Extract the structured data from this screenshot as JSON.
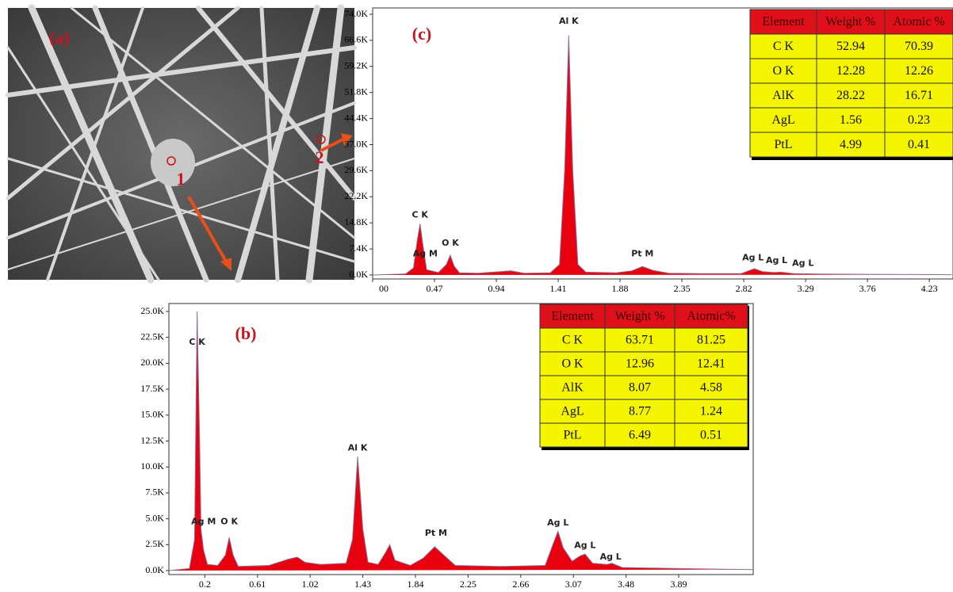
{
  "image_panel": {
    "label": "(a)",
    "markers": [
      "1",
      "2"
    ]
  },
  "chart_data": [
    {
      "type": "area",
      "title": "(c)",
      "color": "#e8000e",
      "x": [
        0.0,
        0.25,
        0.31,
        0.34,
        0.36,
        0.38,
        0.41,
        0.5,
        0.56,
        0.59,
        0.62,
        0.66,
        0.8,
        0.95,
        1.05,
        1.15,
        1.35,
        1.42,
        1.46,
        1.49,
        1.52,
        1.56,
        1.62,
        1.75,
        1.85,
        1.97,
        2.05,
        2.13,
        2.25,
        2.5,
        2.8,
        2.9,
        2.96,
        3.05,
        3.1,
        3.2,
        3.4,
        3.8,
        4.4
      ],
      "values": [
        0,
        300,
        2000,
        10000,
        14500,
        9000,
        1500,
        700,
        3000,
        5600,
        2500,
        600,
        500,
        900,
        1200,
        500,
        600,
        3000,
        30000,
        68000,
        30000,
        3000,
        800,
        700,
        600,
        1200,
        2400,
        1300,
        500,
        400,
        400,
        1800,
        1000,
        700,
        800,
        400,
        300,
        200,
        100
      ],
      "xlim": [
        0,
        4.41
      ],
      "ylim": [
        0,
        74000
      ],
      "xticks": [
        {
          "value": 0,
          "label": "00"
        },
        0.47,
        0.94,
        1.41,
        1.88,
        2.35,
        2.82,
        3.29,
        3.76,
        4.23
      ],
      "yticks": [
        {
          "value": 0,
          "label": "0.0K"
        },
        {
          "value": 7400,
          "label": "7.4K"
        },
        {
          "value": 14800,
          "label": "14.8K"
        },
        {
          "value": 22200,
          "label": "22.2K"
        },
        {
          "value": 29600,
          "label": "29.6K"
        },
        {
          "value": 37000,
          "label": "37.0K"
        },
        {
          "value": 44400,
          "label": "44.4K"
        },
        {
          "value": 51800,
          "label": "51.8K"
        },
        {
          "value": 59200,
          "label": "59.2K"
        },
        {
          "value": 66600,
          "label": "66.6K"
        },
        {
          "value": 74000,
          "label": "74.0K"
        }
      ],
      "annotations": [
        {
          "text": "C K",
          "x": 0.36,
          "y": 17000
        },
        {
          "text": "Ag M",
          "x": 0.4,
          "y": 6000
        },
        {
          "text": "O K",
          "x": 0.59,
          "y": 9000
        },
        {
          "text": "Al K",
          "x": 1.49,
          "y": 72000
        },
        {
          "text": "Pt M",
          "x": 2.05,
          "y": 6000
        },
        {
          "text": "Ag L",
          "x": 2.89,
          "y": 4800
        },
        {
          "text": "Ag L",
          "x": 3.07,
          "y": 4000
        },
        {
          "text": "Ag L",
          "x": 3.27,
          "y": 3300
        }
      ],
      "table": {
        "columns": [
          "Element",
          "Weight %",
          "Atomic %"
        ],
        "rows": [
          [
            "C K",
            52.94,
            70.39
          ],
          [
            "O K",
            12.28,
            12.26
          ],
          [
            "AlK",
            28.22,
            16.71
          ],
          [
            "AgL",
            1.56,
            0.23
          ],
          [
            "PtL",
            4.99,
            0.41
          ]
        ]
      }
    },
    {
      "type": "area",
      "title": "(b)",
      "color": "#e8000e",
      "x": [
        -0.08,
        0.08,
        0.12,
        0.14,
        0.16,
        0.17,
        0.19,
        0.22,
        0.3,
        0.36,
        0.39,
        0.42,
        0.46,
        0.7,
        0.85,
        0.92,
        0.98,
        1.1,
        1.3,
        1.35,
        1.39,
        1.43,
        1.47,
        1.55,
        1.61,
        1.64,
        1.68,
        1.8,
        1.9,
        1.99,
        2.06,
        2.15,
        2.5,
        2.85,
        2.91,
        2.95,
        2.99,
        3.06,
        3.12,
        3.16,
        3.22,
        3.33,
        3.37,
        3.45,
        3.9,
        4.47
      ],
      "values": [
        0,
        200,
        3000,
        25000,
        12000,
        4000,
        2000,
        600,
        500,
        1500,
        3200,
        1500,
        400,
        500,
        1100,
        1300,
        800,
        600,
        700,
        3000,
        11000,
        4000,
        800,
        600,
        1800,
        2500,
        1000,
        500,
        1200,
        2300,
        1500,
        500,
        400,
        500,
        2500,
        3800,
        2200,
        900,
        1400,
        1600,
        700,
        600,
        700,
        300,
        200,
        100
      ],
      "xlim": [
        -0.08,
        4.47
      ],
      "ylim": [
        0,
        25000
      ],
      "xticks": [
        0.2,
        0.61,
        1.02,
        1.43,
        1.84,
        2.25,
        2.66,
        3.07,
        3.48,
        3.89
      ],
      "yticks": [
        {
          "value": 0,
          "label": "0.0K"
        },
        {
          "value": 2500,
          "label": "2.5K"
        },
        {
          "value": 5000,
          "label": "5.0K"
        },
        {
          "value": 7500,
          "label": "7.5K"
        },
        {
          "value": 10000,
          "label": "10.0K"
        },
        {
          "value": 12500,
          "label": "12.5K"
        },
        {
          "value": 15000,
          "label": "15.0K"
        },
        {
          "value": 17500,
          "label": "17.5K"
        },
        {
          "value": 20000,
          "label": "20.0K"
        },
        {
          "value": 22500,
          "label": "22.5K"
        },
        {
          "value": 25000,
          "label": "25.0K"
        }
      ],
      "annotations": [
        {
          "text": "C K",
          "x": 0.14,
          "y": 22000
        },
        {
          "text": "Ag M",
          "x": 0.19,
          "y": 4700
        },
        {
          "text": "O K",
          "x": 0.39,
          "y": 4700
        },
        {
          "text": "Al K",
          "x": 1.39,
          "y": 11800
        },
        {
          "text": "Pt M",
          "x": 2.0,
          "y": 3600
        },
        {
          "text": "Ag L",
          "x": 2.95,
          "y": 4600
        },
        {
          "text": "Ag L",
          "x": 3.16,
          "y": 2400
        },
        {
          "text": "Ag L",
          "x": 3.36,
          "y": 1300
        }
      ],
      "table": {
        "columns": [
          "Element",
          "Weight %",
          "Atomic%"
        ],
        "rows": [
          [
            "C K",
            63.71,
            81.25
          ],
          [
            "O K",
            12.96,
            12.41
          ],
          [
            "AlK",
            8.07,
            4.58
          ],
          [
            "AgL",
            8.77,
            1.24
          ],
          [
            "PtL",
            6.49,
            0.51
          ]
        ]
      }
    }
  ]
}
